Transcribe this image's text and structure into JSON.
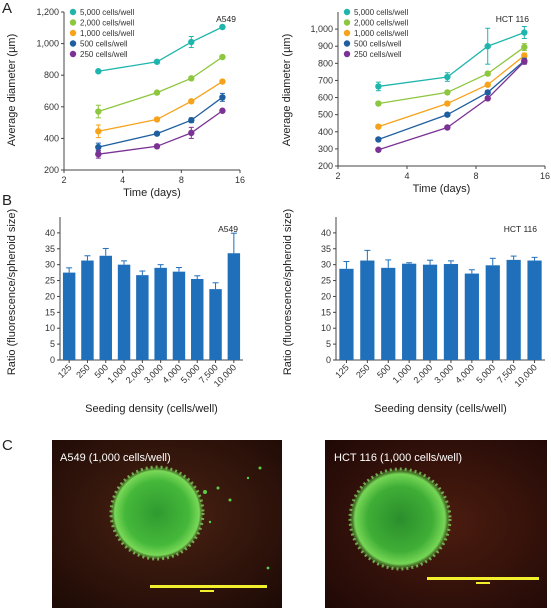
{
  "panel_letters": [
    "A",
    "B",
    "C"
  ],
  "chart_data": [
    {
      "type": "line",
      "panel": "A",
      "cell_line": "A549",
      "xlabel": "Time (days)",
      "ylabel": "Average diameter (µm)",
      "xscale": "log2",
      "xticks": [
        2,
        4,
        8,
        16
      ],
      "xlim": [
        2,
        16
      ],
      "ylim": [
        200,
        1200
      ],
      "yticks": [
        200,
        400,
        600,
        800,
        1000,
        1200
      ],
      "yticks_labels": [
        "200",
        "400",
        "600",
        "800",
        "1,000",
        "1,200"
      ],
      "legend_position": "top-left",
      "x": [
        3,
        6,
        9,
        13
      ],
      "series": [
        {
          "name": "5,000 cells/well",
          "color": "#1fb5ad",
          "values": [
            825,
            885,
            1010,
            1105
          ],
          "errors": [
            10,
            10,
            35,
            10
          ]
        },
        {
          "name": "2,000 cells/well",
          "color": "#8dc63f",
          "values": [
            570,
            690,
            780,
            915
          ],
          "errors": [
            40,
            10,
            10,
            10
          ]
        },
        {
          "name": "1,000 cells/well",
          "color": "#f7a21b",
          "values": [
            445,
            520,
            635,
            760
          ],
          "errors": [
            40,
            10,
            10,
            10
          ]
        },
        {
          "name": "500 cells/well",
          "color": "#1f5fa0",
          "values": [
            345,
            430,
            515,
            660
          ],
          "errors": [
            25,
            10,
            15,
            25
          ]
        },
        {
          "name": "250 cells/well",
          "color": "#7b3294",
          "values": [
            300,
            350,
            435,
            575
          ],
          "errors": [
            25,
            10,
            35,
            10
          ]
        }
      ]
    },
    {
      "type": "line",
      "panel": "A",
      "cell_line": "HCT 116",
      "xlabel": "Time (days)",
      "ylabel": "Average diameter (µm)",
      "xscale": "log2",
      "xticks": [
        2,
        4,
        8,
        16
      ],
      "xlim": [
        2,
        16
      ],
      "ylim": [
        200,
        1100
      ],
      "yticks": [
        200,
        300,
        400,
        500,
        600,
        700,
        800,
        900,
        1000
      ],
      "yticks_labels": [
        "200",
        "300",
        "400",
        "500",
        "600",
        "700",
        "800",
        "900",
        "1,000"
      ],
      "legend_position": "top-left",
      "x": [
        3,
        6,
        9,
        13
      ],
      "series": [
        {
          "name": "5,000 cells/well",
          "color": "#1fb5ad",
          "values": [
            665,
            720,
            900,
            980
          ],
          "errors": [
            25,
            25,
            105,
            35
          ]
        },
        {
          "name": "2,000 cells/well",
          "color": "#8dc63f",
          "values": [
            565,
            630,
            740,
            895
          ],
          "errors": [
            10,
            10,
            10,
            20
          ]
        },
        {
          "name": "1,000 cells/well",
          "color": "#f7a21b",
          "values": [
            430,
            565,
            675,
            845
          ],
          "errors": [
            10,
            10,
            10,
            15
          ]
        },
        {
          "name": "500 cells/well",
          "color": "#1f5fa0",
          "values": [
            355,
            500,
            630,
            815
          ],
          "errors": [
            10,
            10,
            10,
            15
          ]
        },
        {
          "name": "250 cells/well",
          "color": "#7b3294",
          "values": [
            295,
            425,
            595,
            810
          ],
          "errors": [
            10,
            10,
            10,
            15
          ]
        }
      ]
    },
    {
      "type": "bar",
      "panel": "B",
      "cell_line": "A549",
      "xlabel": "Seeding density (cells/well)",
      "ylabel": "Ratio (fluorescence/spheroid size)",
      "ylim": [
        0,
        45
      ],
      "yticks": [
        0,
        5,
        10,
        15,
        20,
        25,
        30,
        35,
        40
      ],
      "color": "#1f6fba",
      "categories": [
        "125",
        "250",
        "500",
        "1,000",
        "2,000",
        "3,000",
        "4,000",
        "5,000",
        "7,500",
        "10,000"
      ],
      "values": [
        27.5,
        31.3,
        32.8,
        30.0,
        26.7,
        29.0,
        27.8,
        25.5,
        22.3,
        33.6
      ],
      "errors": [
        1.5,
        1.5,
        2.3,
        1.2,
        1.3,
        1.0,
        1.3,
        1.0,
        2.0,
        6.3
      ]
    },
    {
      "type": "bar",
      "panel": "B",
      "cell_line": "HCT 116",
      "xlabel": "Seeding density (cells/well)",
      "ylabel": "Ratio (fluorescence/spheroid size)",
      "ylim": [
        0,
        45
      ],
      "yticks": [
        0,
        5,
        10,
        15,
        20,
        25,
        30,
        35,
        40
      ],
      "color": "#1f6fba",
      "categories": [
        "125",
        "250",
        "500",
        "1,000",
        "2,000",
        "3,000",
        "4,000",
        "5,000",
        "7,500",
        "10,000"
      ],
      "values": [
        28.7,
        31.3,
        29.0,
        30.3,
        30.0,
        30.2,
        27.2,
        29.8,
        31.5,
        31.3
      ],
      "errors": [
        2.3,
        3.2,
        2.5,
        0.3,
        1.4,
        1.0,
        1.2,
        2.2,
        1.2,
        1.0
      ]
    }
  ],
  "micrographs": [
    {
      "label": "A549 (1,000 cells/well)",
      "background": "#3b1a10",
      "spheroid_color": "#4ec23a"
    },
    {
      "label": "HCT 116 (1,000 cells/well)",
      "background": "#3a140c",
      "spheroid_color": "#4ec23a"
    }
  ]
}
